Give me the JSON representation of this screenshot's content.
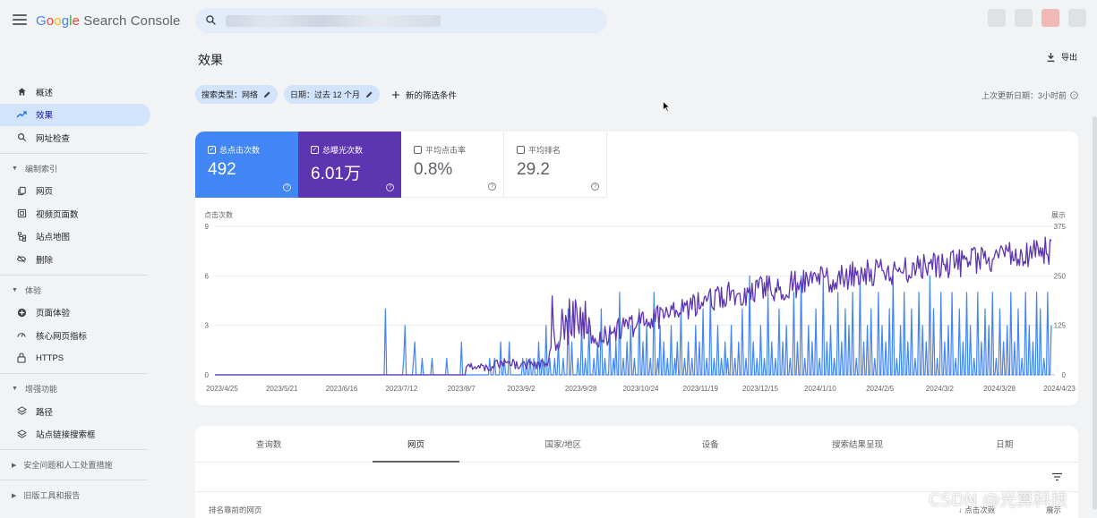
{
  "app": {
    "title": "Google Search Console",
    "logo_parts": [
      "G",
      "o",
      "o",
      "g",
      "l",
      "e"
    ],
    "logo_suffix": " Search Console"
  },
  "sidebar": {
    "items": [
      {
        "label": "概述",
        "icon": "home-icon"
      },
      {
        "label": "效果",
        "icon": "trending-up-icon",
        "active": true
      },
      {
        "label": "网址检查",
        "icon": "search-icon"
      }
    ],
    "sections": [
      {
        "label": "编制索引",
        "items": [
          {
            "label": "网页",
            "icon": "pages-icon"
          },
          {
            "label": "视频页面数",
            "icon": "video-pages-icon"
          },
          {
            "label": "站点地图",
            "icon": "sitemap-icon"
          },
          {
            "label": "删除",
            "icon": "removals-icon"
          }
        ]
      },
      {
        "label": "体验",
        "items": [
          {
            "label": "页面体验",
            "icon": "page-experience-icon"
          },
          {
            "label": "核心网页指标",
            "icon": "gauge-icon"
          },
          {
            "label": "HTTPS",
            "icon": "lock-icon"
          }
        ]
      },
      {
        "label": "增强功能",
        "items": [
          {
            "label": "路径",
            "icon": "breadcrumbs-icon"
          },
          {
            "label": "站点链接搜索框",
            "icon": "sitelinks-icon"
          }
        ]
      }
    ],
    "collapsed": [
      "安全问题和人工处置措施",
      "旧版工具和报告"
    ]
  },
  "header": {
    "page_title": "效果",
    "export_label": "导出"
  },
  "filters": {
    "search_type": "搜索类型：网络",
    "date": "日期：过去 12 个月",
    "new_filter": "新的筛选条件",
    "last_updated": "上次更新日期：3小时前"
  },
  "metrics": [
    {
      "label": "总点击次数",
      "value": "492",
      "checked": true,
      "color": "#4285f4"
    },
    {
      "label": "总曝光次数",
      "value": "6.01万",
      "checked": true,
      "color": "#5e35b1"
    },
    {
      "label": "平均点击率",
      "value": "0.8%",
      "checked": false
    },
    {
      "label": "平均排名",
      "value": "29.2",
      "checked": false
    }
  ],
  "chart_data": {
    "type": "line",
    "ylabel_left": "点击次数",
    "ylabel_right": "展示",
    "left_ticks": [
      "9",
      "6",
      "3",
      "0"
    ],
    "right_ticks": [
      "375",
      "250",
      "125",
      "0"
    ],
    "ylim_left": [
      0,
      9
    ],
    "ylim_right": [
      0,
      375
    ],
    "x_ticks": [
      "2023/4/25",
      "2023/5/21",
      "2023/6/16",
      "2023/7/12",
      "2023/8/7",
      "2023/9/2",
      "2023/9/28",
      "2023/10/24",
      "2023/11/19",
      "2023/12/15",
      "2024/1/10",
      "2024/2/5",
      "2024/3/2",
      "2024/3/28",
      "2024/4/23"
    ],
    "series": [
      {
        "name": "点击次数",
        "color": "#4285f4",
        "axis": "left",
        "values": [
          0,
          0,
          0,
          0,
          0,
          0,
          0,
          0,
          0,
          0,
          0,
          0,
          0,
          0,
          0,
          0,
          0,
          0,
          0,
          0,
          0,
          0,
          0,
          0,
          0,
          0,
          0,
          0,
          0,
          0,
          0,
          0,
          0,
          0,
          0,
          0,
          0,
          0,
          0,
          0,
          0,
          0,
          0,
          0,
          0,
          0,
          0,
          0,
          0,
          0,
          0,
          0,
          0,
          0,
          0,
          0,
          0,
          0,
          0,
          0,
          0,
          0,
          0,
          0,
          0,
          0,
          0,
          0,
          0,
          0,
          0,
          0,
          0,
          0,
          0,
          0,
          0,
          0,
          0,
          0,
          0,
          0,
          0,
          0,
          0,
          0,
          0,
          0,
          0,
          0,
          0,
          0,
          0,
          0,
          0,
          0,
          0,
          0,
          0,
          0,
          0,
          0,
          0,
          0,
          0,
          0,
          0,
          0,
          0,
          0,
          0,
          0,
          0,
          0,
          0,
          0,
          0,
          0,
          0,
          0,
          0,
          0,
          0,
          0,
          0,
          0,
          0,
          0,
          0,
          0,
          0,
          0,
          0,
          0,
          0,
          0,
          0,
          0,
          0,
          4,
          0,
          0,
          0,
          0,
          0,
          0,
          0,
          0,
          0,
          0,
          0,
          0,
          0,
          0,
          1,
          3,
          0,
          0,
          0,
          0,
          0,
          0,
          1,
          2,
          0,
          0,
          0,
          0,
          0,
          1,
          0,
          0,
          0,
          0,
          0,
          0,
          0,
          1,
          0,
          0,
          0,
          0,
          0,
          0,
          0,
          0,
          0,
          0,
          0,
          1,
          0,
          0,
          0,
          0,
          0,
          0,
          0,
          0,
          0,
          0,
          0,
          2,
          0,
          0,
          0,
          0,
          0,
          0,
          0,
          0,
          0,
          0,
          0,
          0,
          0,
          0,
          0,
          0,
          0,
          0,
          0,
          0,
          0,
          0,
          1,
          0,
          0,
          0,
          1,
          0,
          0,
          0,
          0,
          2,
          0,
          0,
          1,
          0,
          0,
          0,
          2,
          0,
          0,
          0,
          0,
          0,
          0,
          0,
          0,
          0,
          0,
          1,
          0,
          0,
          1,
          0,
          0,
          1,
          0,
          0,
          1,
          0,
          0,
          0,
          2,
          0,
          0,
          1,
          0,
          0,
          3,
          0,
          0,
          1,
          0,
          0,
          0,
          1,
          0,
          0,
          2,
          0,
          0,
          0,
          1,
          0,
          0,
          0,
          4,
          0,
          0,
          2,
          0,
          0,
          0,
          0,
          1,
          0,
          0,
          3,
          0,
          0,
          1,
          0,
          0,
          3,
          0,
          0,
          0,
          1,
          0,
          0,
          2,
          0,
          0,
          4,
          0,
          0,
          1,
          0,
          0,
          0,
          3,
          0,
          0,
          1,
          0,
          2,
          0,
          0,
          5,
          0,
          0,
          1,
          0,
          0,
          2,
          0,
          0,
          3,
          0,
          0,
          1,
          0,
          0,
          0,
          4,
          0,
          0,
          2,
          0,
          0,
          3,
          0,
          0,
          1,
          0,
          0,
          5,
          0,
          0,
          1,
          0,
          3,
          0,
          0,
          2,
          0,
          0,
          1,
          0,
          0,
          3,
          0,
          0,
          1,
          0,
          2,
          0,
          0,
          4,
          0,
          0,
          1,
          0,
          0,
          2,
          0,
          0,
          1,
          0,
          0,
          3,
          0,
          0,
          2,
          0,
          0,
          4,
          0,
          0,
          1,
          0,
          0,
          5,
          0,
          0,
          1,
          0,
          0,
          3,
          0,
          0,
          1,
          0,
          0,
          2,
          0,
          1,
          0,
          0,
          3,
          0,
          0,
          1,
          0,
          0,
          2,
          0,
          0,
          4,
          0,
          0,
          1,
          0,
          0,
          6,
          0,
          0,
          2,
          0,
          0,
          1,
          0,
          0,
          3,
          0,
          0,
          1,
          0,
          0,
          5,
          0,
          0,
          2,
          0,
          0,
          1,
          0,
          0,
          4,
          0,
          0,
          2,
          0,
          0,
          3,
          0,
          0,
          1,
          0,
          0,
          5,
          0,
          0,
          2,
          0,
          0,
          6,
          0,
          0,
          1,
          0,
          0,
          3,
          0,
          0,
          2,
          0,
          0,
          4,
          0,
          0,
          1,
          0,
          0,
          6,
          0,
          0,
          2,
          0,
          0,
          3,
          0,
          0,
          1,
          0,
          0,
          5,
          0,
          0,
          2,
          0,
          0,
          4,
          0,
          0,
          3,
          0,
          0,
          5,
          0,
          0,
          1,
          0,
          0,
          6,
          0,
          0,
          2,
          0,
          0,
          3,
          0,
          0,
          4,
          0,
          0,
          1,
          0,
          0,
          5,
          0,
          0,
          3,
          0,
          0,
          2,
          0,
          0,
          4,
          0,
          0,
          6,
          0,
          0,
          1,
          0,
          0,
          3,
          0,
          0,
          5,
          0,
          0,
          2,
          0,
          0,
          4,
          0,
          0,
          1,
          0,
          0,
          5,
          0,
          0,
          3,
          0,
          0,
          2,
          0,
          0,
          6,
          0,
          0,
          4,
          0,
          0,
          1,
          0,
          0,
          5,
          0,
          0,
          2,
          0,
          0,
          3,
          0,
          0,
          5,
          0,
          0,
          1,
          0,
          0,
          4,
          0,
          0,
          2,
          0,
          0,
          5,
          0,
          0,
          3,
          0,
          0,
          1,
          0,
          0,
          5,
          0,
          0,
          2,
          0,
          0,
          4,
          0,
          0,
          3,
          0,
          0,
          5,
          0,
          0,
          1,
          0,
          0,
          4,
          0,
          0,
          2,
          0,
          0,
          3,
          0,
          0,
          5,
          0,
          0,
          2,
          0,
          0,
          4,
          0,
          0,
          1,
          0,
          0,
          5,
          0,
          0,
          3,
          0,
          0,
          2,
          0,
          0,
          5,
          0,
          0,
          4,
          0,
          0,
          1,
          0,
          0,
          5,
          0,
          0,
          3
        ]
      },
      {
        "name": "展示",
        "color": "#5e35b1",
        "axis": "right"
      }
    ]
  },
  "tabs": [
    "查询数",
    "网页",
    "国家/地区",
    "设备",
    "搜索结果呈现",
    "日期"
  ],
  "active_tab": 1,
  "table": {
    "col_page": "排名靠前的网页",
    "col_clicks": "点击次数",
    "col_impr": "展示"
  },
  "watermark": "CSDN @光算科技"
}
